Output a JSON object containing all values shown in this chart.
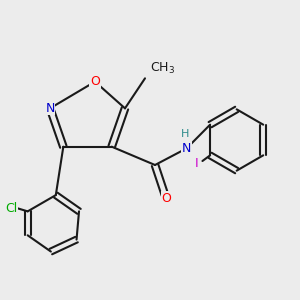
{
  "bg_color": "#ececec",
  "bond_color": "#1a1a1a",
  "bond_width": 1.5,
  "font_size": 9,
  "colors": {
    "O": "#ff0000",
    "N": "#0000cc",
    "Cl": "#00aa00",
    "I": "#cc00cc",
    "H": "#2e8b8b",
    "C": "#1a1a1a"
  }
}
